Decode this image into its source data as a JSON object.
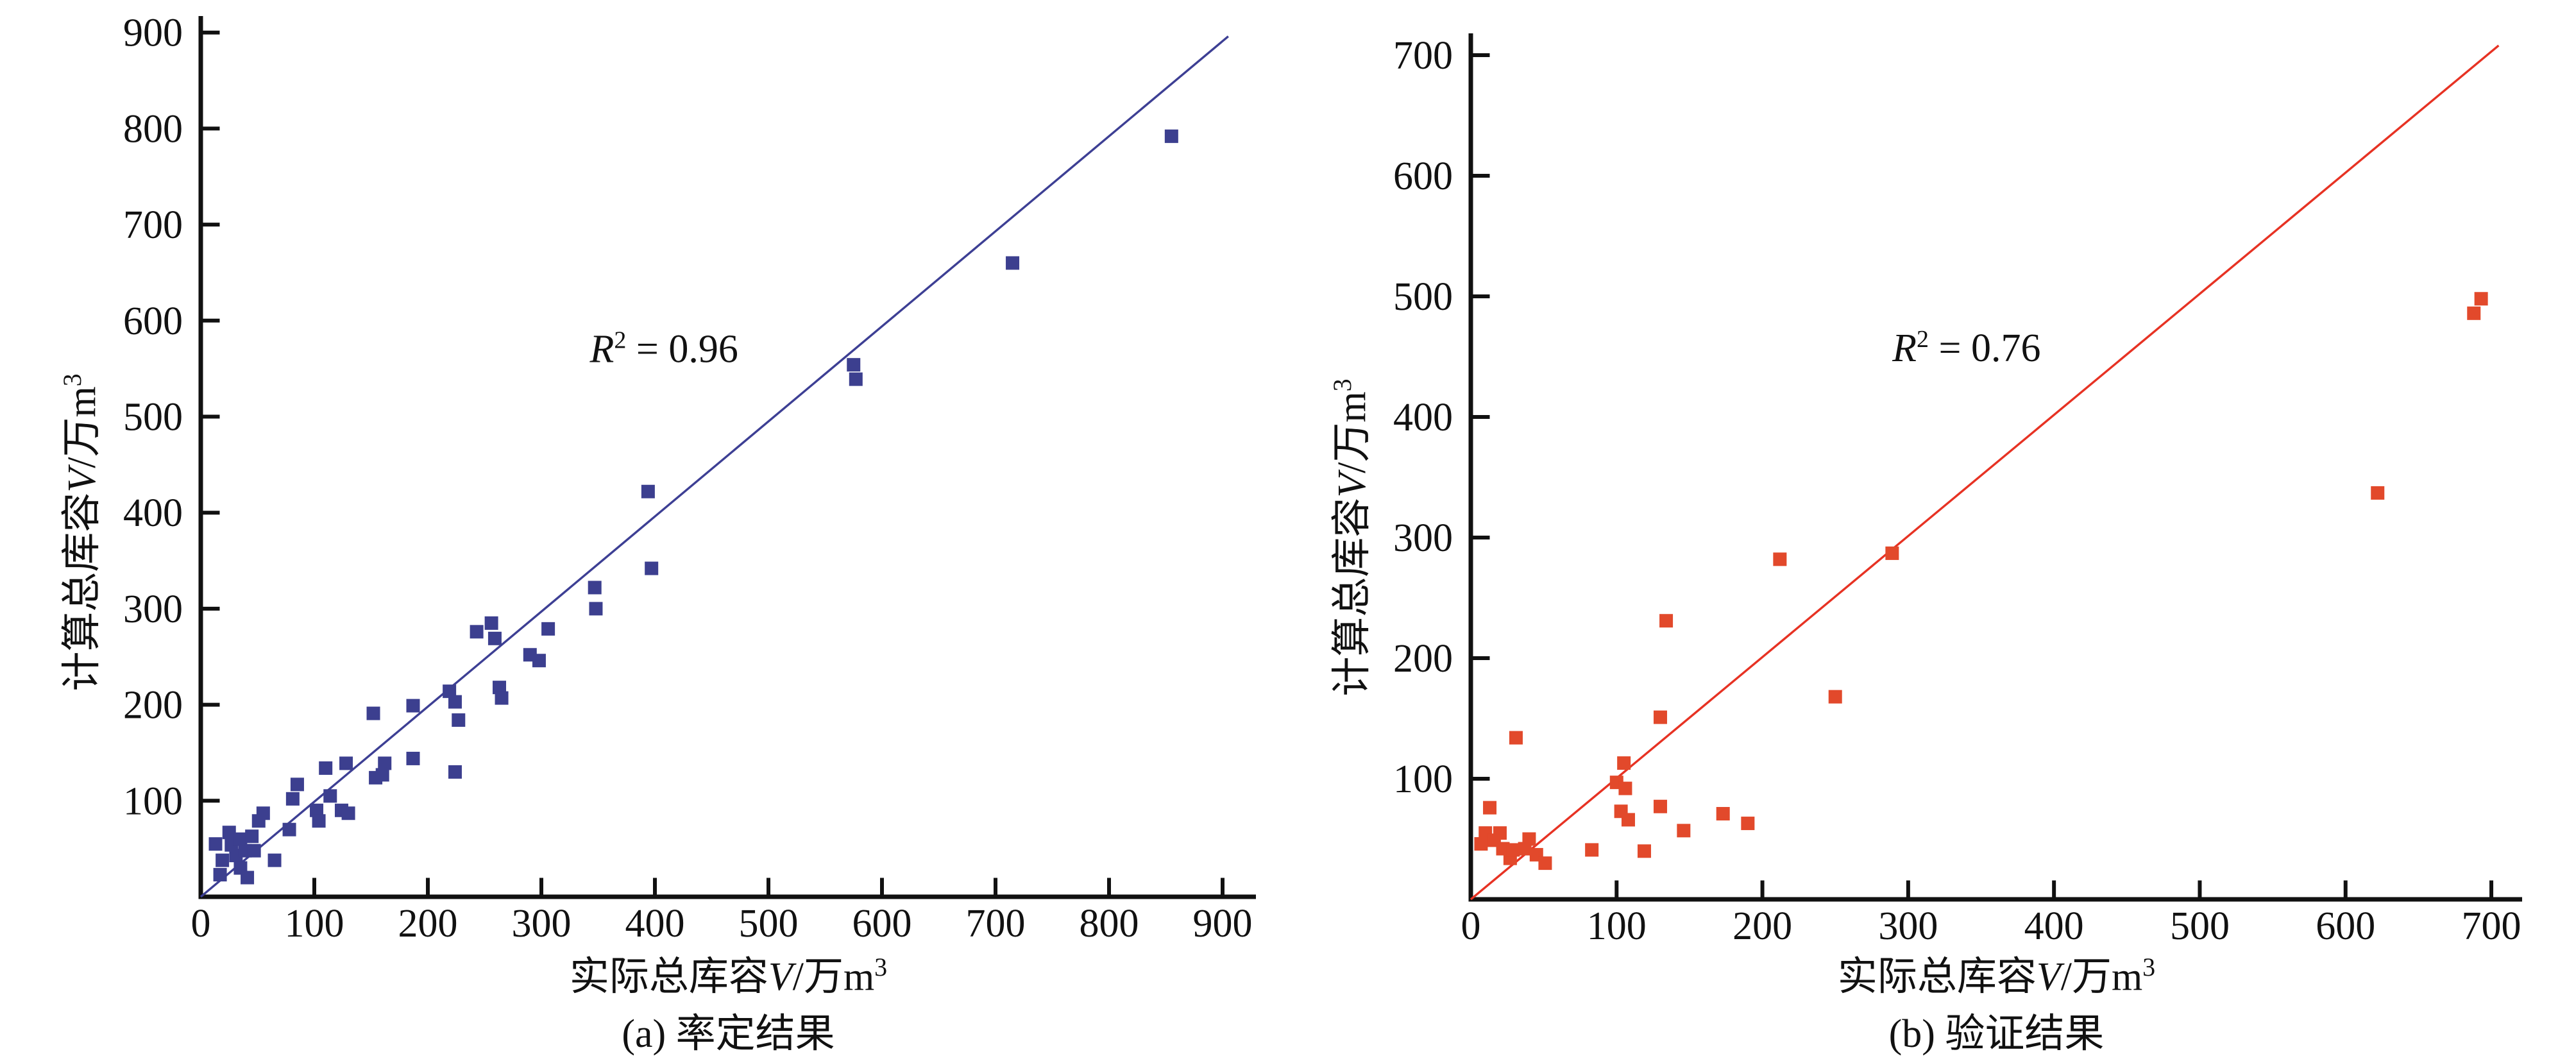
{
  "figure": {
    "background": "#ffffff",
    "text_color": "#111111"
  },
  "chart_data": [
    {
      "id": "a",
      "type": "scatter",
      "caption": "(a) 率定结果",
      "xlabel": {
        "pre": "实际总库容",
        "var": "V",
        "post": "/万m",
        "sup": "3"
      },
      "ylabel": {
        "pre": "计算总库容",
        "var": "V",
        "post": "/万m",
        "sup": "3"
      },
      "xlim": [
        0,
        930
      ],
      "ylim": [
        0,
        935
      ],
      "xticks": [
        0,
        100,
        200,
        300,
        400,
        500,
        600,
        700,
        800,
        900
      ],
      "yticks": [
        100,
        200,
        300,
        400,
        500,
        600,
        700,
        800,
        900
      ],
      "grid": false,
      "legend": "none",
      "annotation": {
        "var": "R",
        "sup": "2",
        "rest": " = 0.96",
        "x": 408,
        "y": 570
      },
      "fit_line": {
        "x1": 0,
        "y1": 0,
        "x2": 905,
        "y2": 896
      },
      "marker_color": "#3c3f8f",
      "line_color": "#3d3f94",
      "points": [
        [
          13,
          55
        ],
        [
          19,
          38
        ],
        [
          17,
          23
        ],
        [
          25,
          67
        ],
        [
          27,
          54
        ],
        [
          31,
          43
        ],
        [
          35,
          60
        ],
        [
          35,
          30
        ],
        [
          39,
          48
        ],
        [
          41,
          20
        ],
        [
          45,
          63
        ],
        [
          47,
          48
        ],
        [
          51,
          79
        ],
        [
          55,
          87
        ],
        [
          65,
          38
        ],
        [
          78,
          70
        ],
        [
          81,
          102
        ],
        [
          85,
          117
        ],
        [
          102,
          90
        ],
        [
          104,
          79
        ],
        [
          110,
          134
        ],
        [
          114,
          105
        ],
        [
          124,
          90
        ],
        [
          128,
          139
        ],
        [
          130,
          87
        ],
        [
          152,
          191
        ],
        [
          154,
          124
        ],
        [
          160,
          127
        ],
        [
          162,
          139
        ],
        [
          187,
          199
        ],
        [
          187,
          144
        ],
        [
          219,
          214
        ],
        [
          224,
          203
        ],
        [
          227,
          184
        ],
        [
          224,
          130
        ],
        [
          243,
          276
        ],
        [
          256,
          285
        ],
        [
          259,
          269
        ],
        [
          263,
          218
        ],
        [
          265,
          207
        ],
        [
          290,
          252
        ],
        [
          298,
          246
        ],
        [
          306,
          279
        ],
        [
          347,
          322
        ],
        [
          348,
          300
        ],
        [
          394,
          422
        ],
        [
          397,
          342
        ],
        [
          575,
          554
        ],
        [
          577,
          539
        ],
        [
          715,
          660
        ],
        [
          855,
          792
        ]
      ]
    },
    {
      "id": "b",
      "type": "scatter",
      "caption": "(b) 验证结果",
      "xlabel": {
        "pre": "实际总库容",
        "var": "V",
        "post": "/万m",
        "sup": "3"
      },
      "ylabel": {
        "pre": "计算总库容",
        "var": "V",
        "post": "/万m",
        "sup": "3"
      },
      "xlim": [
        0,
        721
      ],
      "ylim": [
        0,
        716
      ],
      "xticks": [
        0,
        100,
        200,
        300,
        400,
        500,
        600,
        700
      ],
      "yticks": [
        100,
        200,
        300,
        400,
        500,
        600,
        700
      ],
      "grid": false,
      "legend": "none",
      "annotation": {
        "var": "R",
        "sup": "2",
        "rest": " = 0.76",
        "x": 340,
        "y": 457
      },
      "fit_line": {
        "x1": 0,
        "y1": 0,
        "x2": 705,
        "y2": 708
      },
      "marker_color": "#e2492b",
      "line_color": "#e73223",
      "points": [
        [
          7,
          46
        ],
        [
          10,
          55
        ],
        [
          13,
          76
        ],
        [
          16,
          49
        ],
        [
          20,
          55
        ],
        [
          22,
          42
        ],
        [
          27,
          34
        ],
        [
          29,
          41
        ],
        [
          31,
          134
        ],
        [
          37,
          42
        ],
        [
          40,
          50
        ],
        [
          45,
          37
        ],
        [
          51,
          30
        ],
        [
          83,
          41
        ],
        [
          100,
          97
        ],
        [
          103,
          73
        ],
        [
          105,
          113
        ],
        [
          106,
          92
        ],
        [
          108,
          66
        ],
        [
          119,
          40
        ],
        [
          130,
          77
        ],
        [
          130,
          151
        ],
        [
          134,
          231
        ],
        [
          146,
          57
        ],
        [
          173,
          71
        ],
        [
          190,
          63
        ],
        [
          212,
          282
        ],
        [
          250,
          168
        ],
        [
          289,
          287
        ],
        [
          622,
          337
        ],
        [
          688,
          486
        ],
        [
          693,
          498
        ]
      ]
    }
  ]
}
